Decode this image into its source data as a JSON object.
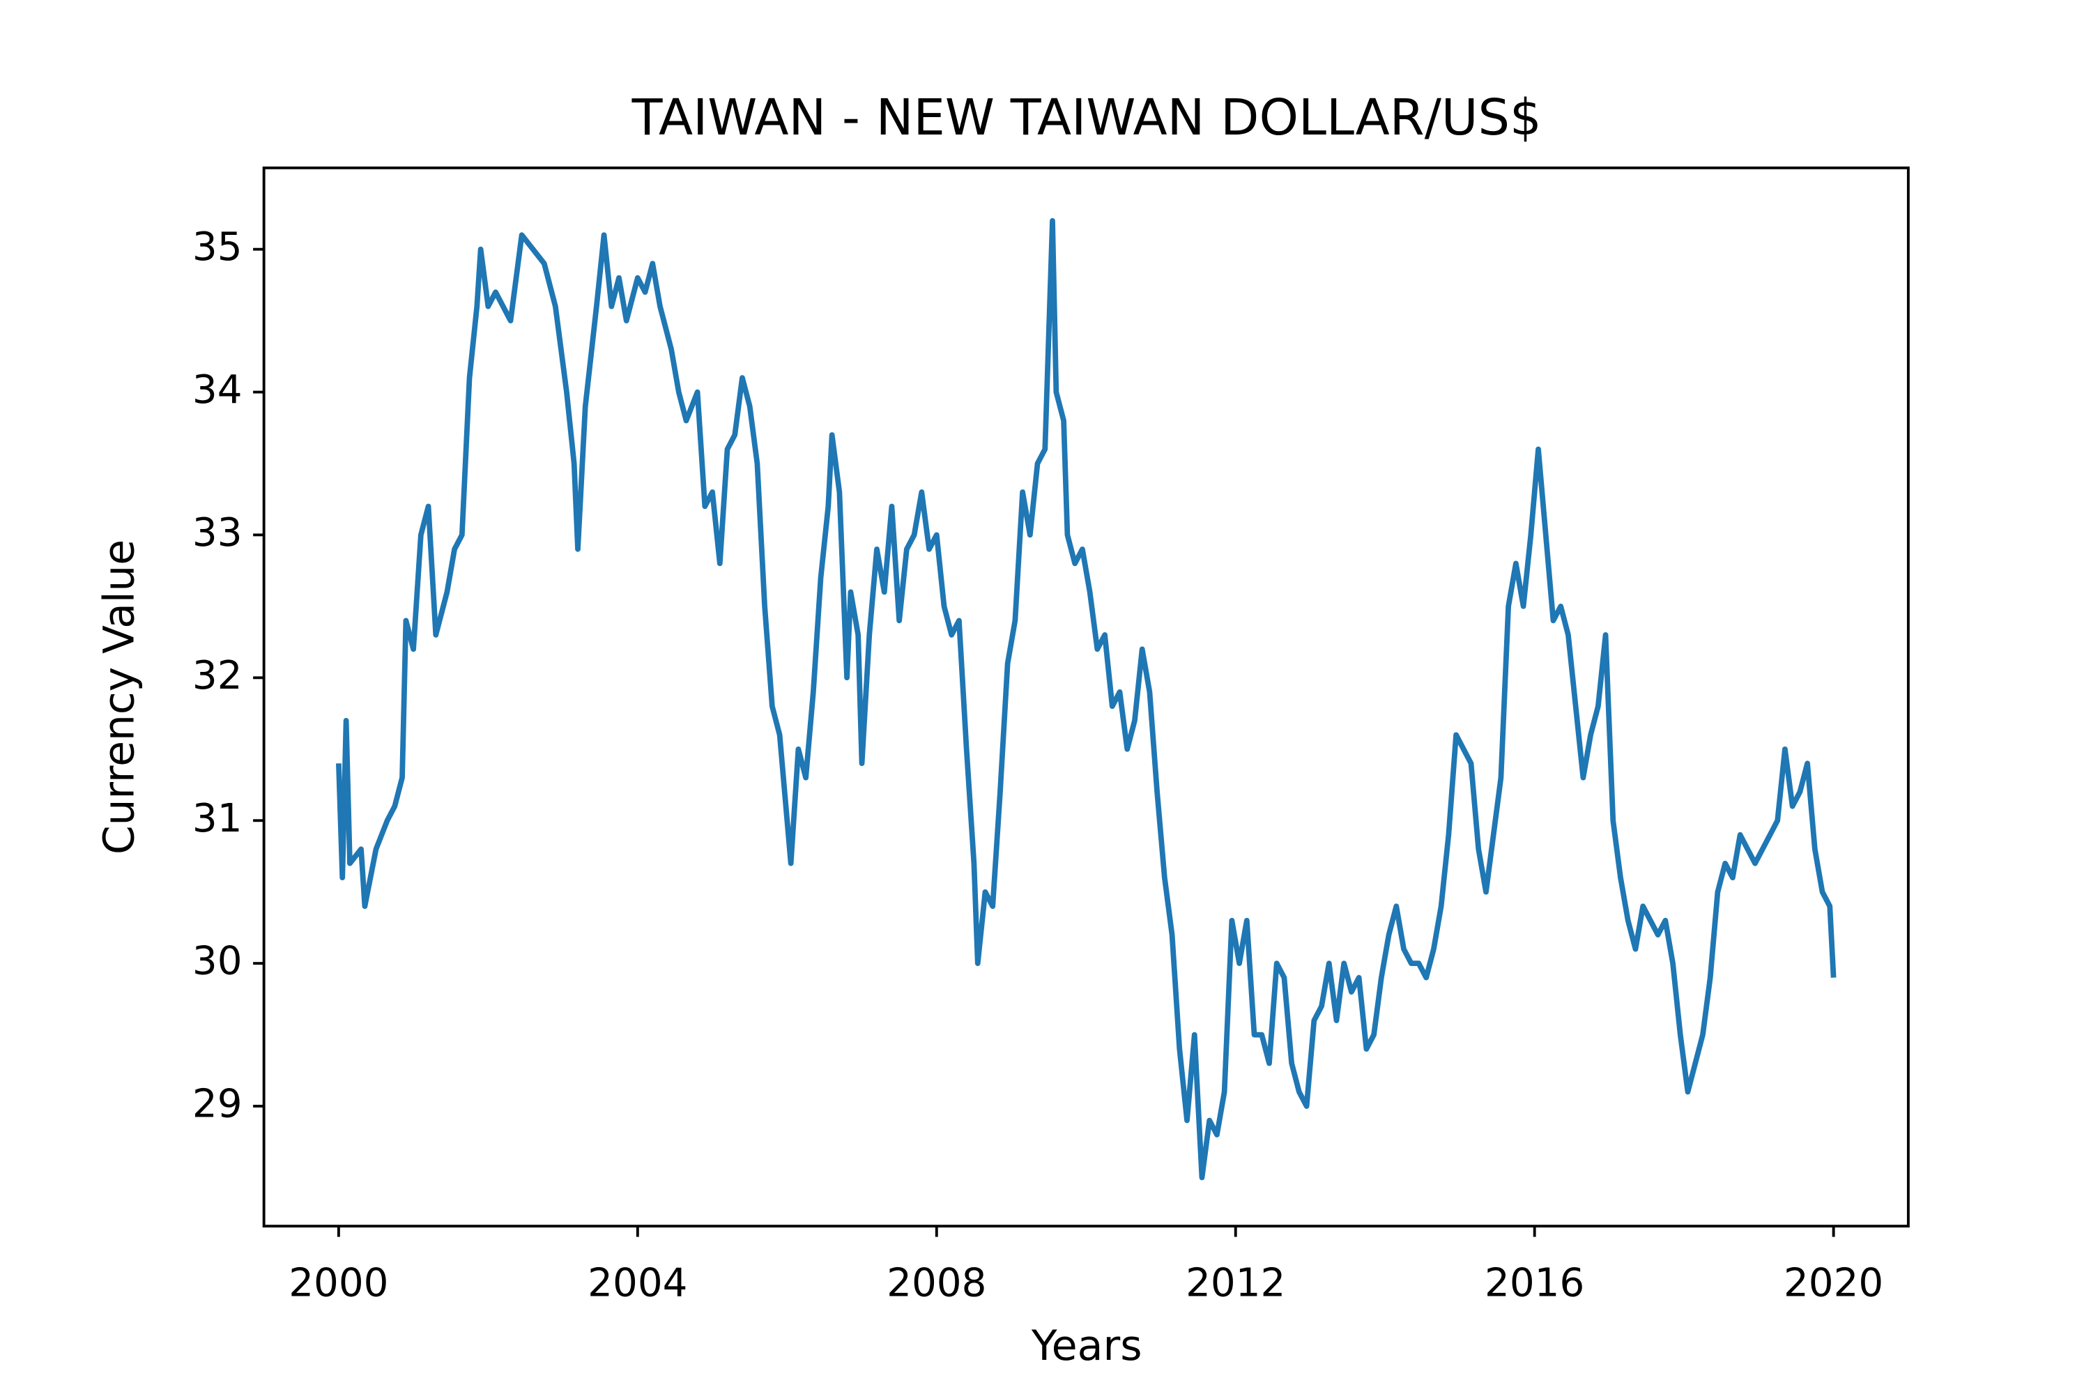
{
  "chart_data": {
    "type": "line",
    "title": "TAIWAN - NEW TAIWAN DOLLAR/US$",
    "x_label": "Years",
    "y_label": "Currency Value",
    "xlim": [
      1999,
      2021
    ],
    "ylim": [
      28.16,
      35.57
    ],
    "xticks": [
      2000,
      2004,
      2008,
      2012,
      2016,
      2020
    ],
    "yticks": [
      29,
      30,
      31,
      32,
      33,
      34,
      35
    ],
    "grid": false,
    "x": [
      2000.0,
      2000.05,
      2000.1,
      2000.15,
      2000.3,
      2000.35,
      2000.5,
      2000.65,
      2000.75,
      2000.85,
      2000.9,
      2001.0,
      2001.1,
      2001.2,
      2001.3,
      2001.45,
      2001.55,
      2001.65,
      2001.75,
      2001.85,
      2001.9,
      2002.0,
      2002.1,
      2002.3,
      2002.45,
      2002.6,
      2002.75,
      2002.9,
      2003.05,
      2003.15,
      2003.2,
      2003.3,
      2003.45,
      2003.55,
      2003.65,
      2003.75,
      2003.85,
      2004.0,
      2004.1,
      2004.2,
      2004.3,
      2004.45,
      2004.55,
      2004.65,
      2004.8,
      2004.9,
      2005.0,
      2005.1,
      2005.2,
      2005.3,
      2005.4,
      2005.5,
      2005.6,
      2005.7,
      2005.8,
      2005.9,
      2006.0,
      2006.05,
      2006.15,
      2006.25,
      2006.35,
      2006.45,
      2006.55,
      2006.6,
      2006.7,
      2006.8,
      2006.85,
      2006.95,
      2007.0,
      2007.1,
      2007.2,
      2007.3,
      2007.4,
      2007.5,
      2007.6,
      2007.7,
      2007.8,
      2007.9,
      2008.0,
      2008.1,
      2008.2,
      2008.3,
      2008.4,
      2008.5,
      2008.55,
      2008.65,
      2008.75,
      2008.85,
      2008.95,
      2009.05,
      2009.15,
      2009.25,
      2009.35,
      2009.45,
      2009.55,
      2009.6,
      2009.7,
      2009.75,
      2009.85,
      2009.95,
      2010.05,
      2010.15,
      2010.25,
      2010.35,
      2010.45,
      2010.55,
      2010.65,
      2010.75,
      2010.85,
      2010.95,
      2011.05,
      2011.15,
      2011.25,
      2011.35,
      2011.45,
      2011.55,
      2011.65,
      2011.75,
      2011.85,
      2011.95,
      2012.05,
      2012.15,
      2012.25,
      2012.35,
      2012.45,
      2012.55,
      2012.65,
      2012.75,
      2012.85,
      2012.95,
      2013.05,
      2013.15,
      2013.25,
      2013.35,
      2013.45,
      2013.55,
      2013.65,
      2013.75,
      2013.85,
      2013.95,
      2014.05,
      2014.15,
      2014.25,
      2014.35,
      2014.45,
      2014.55,
      2014.65,
      2014.75,
      2014.85,
      2014.95,
      2015.05,
      2015.15,
      2015.25,
      2015.35,
      2015.45,
      2015.55,
      2015.65,
      2015.75,
      2015.85,
      2015.95,
      2016.05,
      2016.15,
      2016.25,
      2016.35,
      2016.45,
      2016.55,
      2016.65,
      2016.75,
      2016.85,
      2016.95,
      2017.05,
      2017.15,
      2017.25,
      2017.35,
      2017.45,
      2017.55,
      2017.65,
      2017.75,
      2017.85,
      2017.95,
      2018.05,
      2018.15,
      2018.25,
      2018.35,
      2018.45,
      2018.55,
      2018.65,
      2018.75,
      2018.85,
      2018.95,
      2019.05,
      2019.15,
      2019.25,
      2019.35,
      2019.45,
      2019.55,
      2019.65,
      2019.75,
      2019.85,
      2019.95,
      2020.0
    ],
    "series": [
      {
        "name": "Currency Value",
        "color": "#1f77b4",
        "values": [
          31.4,
          30.6,
          31.7,
          30.7,
          30.8,
          30.4,
          30.8,
          31.0,
          31.1,
          31.3,
          32.4,
          32.2,
          33.0,
          33.2,
          32.3,
          32.6,
          32.9,
          33.0,
          34.1,
          34.6,
          35.0,
          34.6,
          34.7,
          34.5,
          35.1,
          35.0,
          34.9,
          34.6,
          34.0,
          33.5,
          32.9,
          33.9,
          34.6,
          35.1,
          34.6,
          34.8,
          34.5,
          34.8,
          34.7,
          34.9,
          34.6,
          34.3,
          34.0,
          33.8,
          34.0,
          33.2,
          33.3,
          32.8,
          33.6,
          33.7,
          34.1,
          33.9,
          33.5,
          32.5,
          31.8,
          31.6,
          31.0,
          30.7,
          31.5,
          31.3,
          31.9,
          32.7,
          33.2,
          33.7,
          33.3,
          32.0,
          32.6,
          32.3,
          31.4,
          32.3,
          32.9,
          32.6,
          33.2,
          32.4,
          32.9,
          33.0,
          33.3,
          32.9,
          33.0,
          32.5,
          32.3,
          32.4,
          31.5,
          30.7,
          30.0,
          30.5,
          30.4,
          31.2,
          32.1,
          32.4,
          33.3,
          33.0,
          33.5,
          33.6,
          35.2,
          34.0,
          33.8,
          33.0,
          32.8,
          32.9,
          32.6,
          32.2,
          32.3,
          31.8,
          31.9,
          31.5,
          31.7,
          32.2,
          31.9,
          31.2,
          30.6,
          30.2,
          29.4,
          28.9,
          29.5,
          28.5,
          28.9,
          28.8,
          29.1,
          30.3,
          30.0,
          30.3,
          29.5,
          29.5,
          29.3,
          30.0,
          29.9,
          29.3,
          29.1,
          29.0,
          29.6,
          29.7,
          30.0,
          29.6,
          30.0,
          29.8,
          29.9,
          29.4,
          29.5,
          29.9,
          30.2,
          30.4,
          30.1,
          30.0,
          30.0,
          29.9,
          30.1,
          30.4,
          30.9,
          31.6,
          31.5,
          31.4,
          30.8,
          30.5,
          30.9,
          31.3,
          32.5,
          32.8,
          32.5,
          33.0,
          33.6,
          33.0,
          32.4,
          32.5,
          32.3,
          31.8,
          31.3,
          31.6,
          31.8,
          32.3,
          31.0,
          30.6,
          30.3,
          30.1,
          30.4,
          30.3,
          30.2,
          30.3,
          30.0,
          29.5,
          29.1,
          29.3,
          29.5,
          29.9,
          30.5,
          30.7,
          30.6,
          30.9,
          30.8,
          30.7,
          30.8,
          30.9,
          31.0,
          31.5,
          31.1,
          31.2,
          31.4,
          30.8,
          30.5,
          30.4,
          29.9
        ]
      }
    ]
  }
}
